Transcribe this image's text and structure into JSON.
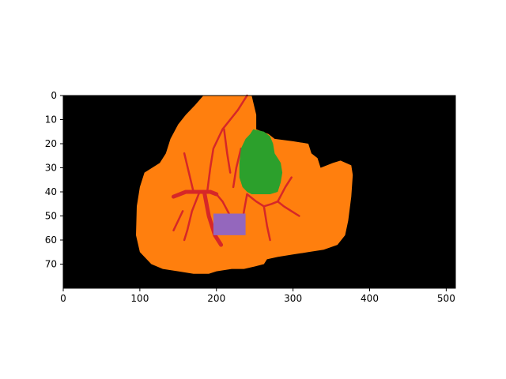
{
  "chart_data": {
    "type": "heatmap",
    "title": "",
    "xlabel": "",
    "ylabel": "",
    "xlim": [
      0,
      512
    ],
    "ylim": [
      80,
      0
    ],
    "x_ticks": [
      0,
      100,
      200,
      300,
      400,
      500
    ],
    "y_ticks": [
      0,
      10,
      20,
      30,
      40,
      50,
      60,
      70
    ],
    "grid": false,
    "legend": "none",
    "background_color": "#000000",
    "classes": [
      {
        "label_value": 0,
        "color": "#000000"
      },
      {
        "label_value": 1,
        "color": "#ff7f0e"
      },
      {
        "label_value": 2,
        "color": "#d62728"
      },
      {
        "label_value": 3,
        "color": "#2ca02c"
      },
      {
        "label_value": 4,
        "color": "#9467bd"
      }
    ],
    "regions": {
      "organ": {
        "class": 1,
        "outline": [
          [
            183,
            0
          ],
          [
            246,
            0
          ],
          [
            252,
            8
          ],
          [
            252,
            14
          ],
          [
            268,
            16
          ],
          [
            276,
            18
          ],
          [
            300,
            19
          ],
          [
            320,
            20
          ],
          [
            324,
            24
          ],
          [
            332,
            26
          ],
          [
            336,
            30
          ],
          [
            352,
            28
          ],
          [
            362,
            27
          ],
          [
            376,
            29
          ],
          [
            378,
            33
          ],
          [
            376,
            42
          ],
          [
            372,
            52
          ],
          [
            368,
            58
          ],
          [
            358,
            62
          ],
          [
            340,
            64
          ],
          [
            320,
            65
          ],
          [
            300,
            66
          ],
          [
            280,
            67
          ],
          [
            266,
            68
          ],
          [
            262,
            70
          ],
          [
            250,
            71
          ],
          [
            236,
            72
          ],
          [
            220,
            72
          ],
          [
            200,
            73
          ],
          [
            190,
            74
          ],
          [
            170,
            74
          ],
          [
            150,
            73
          ],
          [
            130,
            72
          ],
          [
            115,
            70
          ],
          [
            100,
            65
          ],
          [
            95,
            58
          ],
          [
            96,
            46
          ],
          [
            100,
            38
          ],
          [
            106,
            32
          ],
          [
            116,
            30
          ],
          [
            126,
            28
          ],
          [
            134,
            24
          ],
          [
            140,
            18
          ],
          [
            150,
            12
          ],
          [
            160,
            8
          ],
          [
            172,
            4
          ]
        ]
      },
      "tumor": {
        "class": 3,
        "outline": [
          [
            248,
            14
          ],
          [
            262,
            15
          ],
          [
            270,
            17
          ],
          [
            274,
            20
          ],
          [
            276,
            24
          ],
          [
            280,
            26
          ],
          [
            284,
            28
          ],
          [
            286,
            32
          ],
          [
            284,
            36
          ],
          [
            280,
            40
          ],
          [
            270,
            41
          ],
          [
            256,
            41
          ],
          [
            246,
            41
          ],
          [
            240,
            40
          ],
          [
            234,
            38
          ],
          [
            230,
            34
          ],
          [
            230,
            28
          ],
          [
            232,
            22
          ],
          [
            238,
            18
          ],
          [
            244,
            16
          ]
        ]
      },
      "lesion": {
        "class": 4,
        "outline": [
          [
            196,
            49
          ],
          [
            238,
            49
          ],
          [
            238,
            58
          ],
          [
            196,
            58
          ]
        ]
      },
      "vessels": {
        "class": 2,
        "paths": [
          [
            [
              144,
              42
            ],
            [
              160,
              40
            ],
            [
              172,
              40
            ],
            [
              184,
              40
            ]
          ],
          [
            [
              184,
              40
            ],
            [
              192,
              40
            ],
            [
              200,
              41
            ]
          ],
          [
            [
              184,
              40
            ],
            [
              190,
              50
            ],
            [
              198,
              58
            ],
            [
              206,
              62
            ]
          ],
          [
            [
              178,
              40
            ],
            [
              168,
              48
            ],
            [
              162,
              56
            ],
            [
              158,
              60
            ]
          ],
          [
            [
              170,
              40
            ],
            [
              164,
              32
            ],
            [
              158,
              24
            ]
          ],
          [
            [
              188,
              40
            ],
            [
              192,
              30
            ],
            [
              196,
              22
            ],
            [
              202,
              18
            ],
            [
              208,
              14
            ],
            [
              218,
              10
            ],
            [
              228,
              6
            ],
            [
              236,
              2
            ],
            [
              240,
              0
            ]
          ],
          [
            [
              200,
              41
            ],
            [
              208,
              44
            ],
            [
              218,
              50
            ],
            [
              224,
              56
            ]
          ],
          [
            [
              240,
              41
            ],
            [
              252,
              44
            ],
            [
              262,
              46
            ],
            [
              272,
              45
            ],
            [
              280,
              44
            ],
            [
              288,
              46
            ],
            [
              298,
              48
            ],
            [
              308,
              50
            ]
          ],
          [
            [
              262,
              46
            ],
            [
              266,
              54
            ],
            [
              270,
              60
            ]
          ],
          [
            [
              240,
              41
            ],
            [
              236,
              48
            ],
            [
              232,
              56
            ]
          ],
          [
            [
              232,
              22
            ],
            [
              226,
              30
            ],
            [
              222,
              38
            ]
          ],
          [
            [
              280,
              44
            ],
            [
              290,
              38
            ],
            [
              298,
              34
            ]
          ],
          [
            [
              210,
              14
            ],
            [
              214,
              24
            ],
            [
              218,
              32
            ]
          ],
          [
            [
              156,
              48
            ],
            [
              150,
              52
            ],
            [
              144,
              56
            ]
          ]
        ]
      }
    }
  }
}
